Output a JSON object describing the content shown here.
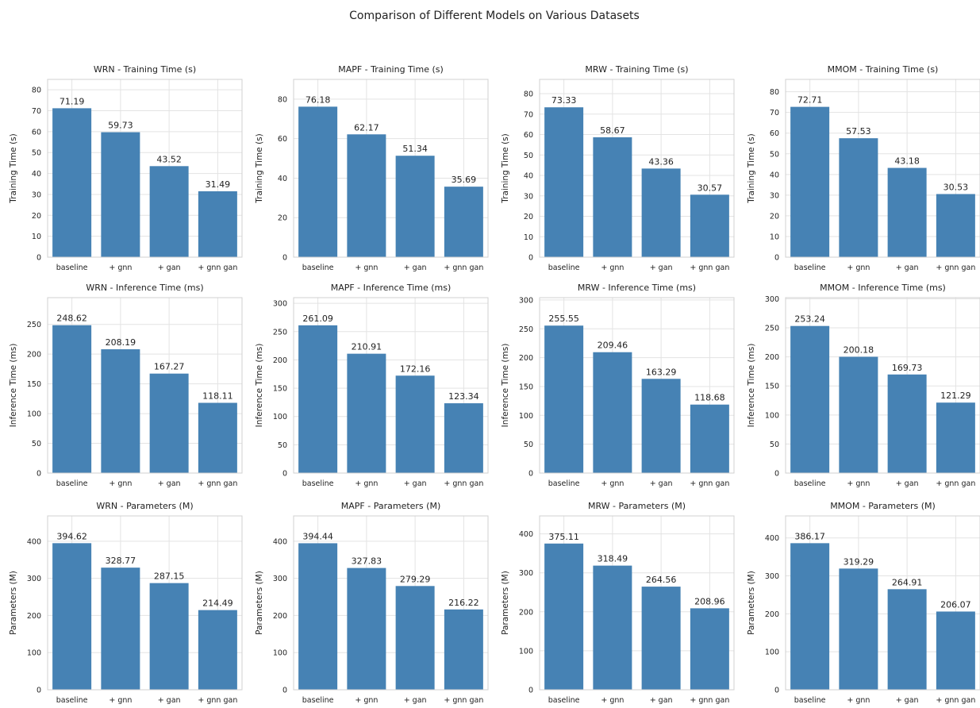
{
  "title": "Comparison of Different Models on Various Datasets",
  "colors": {
    "bar": "#4682b4",
    "grid": "#e3e3e3",
    "frame": "#d0d0d0"
  },
  "chart_data": [
    {
      "type": "bar",
      "title": "WRN - Training Time (s)",
      "ylabel": "Training Time (s)",
      "categories": [
        "baseline",
        "+ gnn",
        "+ gan",
        "+ gnn gan"
      ],
      "values": [
        71.19,
        59.73,
        43.52,
        31.49
      ],
      "value_labels": [
        "71.19",
        "59.73",
        "43.52",
        "31.49"
      ],
      "ylim": [
        0,
        85
      ],
      "yticks": [
        0,
        10,
        20,
        30,
        40,
        50,
        60,
        70,
        80
      ],
      "grid": true
    },
    {
      "type": "bar",
      "title": "MAPF - Training Time (s)",
      "ylabel": "Training Time (s)",
      "categories": [
        "baseline",
        "+ gnn",
        "+ gan",
        "+ gnn gan"
      ],
      "values": [
        76.18,
        62.17,
        51.34,
        35.69
      ],
      "value_labels": [
        "76.18",
        "62.17",
        "51.34",
        "35.69"
      ],
      "ylim": [
        0,
        90
      ],
      "yticks": [
        0,
        20,
        40,
        60,
        80
      ],
      "grid": true
    },
    {
      "type": "bar",
      "title": "MRW - Training Time (s)",
      "ylabel": "Training Time (s)",
      "categories": [
        "baseline",
        "+ gnn",
        "+ gan",
        "+ gnn gan"
      ],
      "values": [
        73.33,
        58.67,
        43.36,
        30.57
      ],
      "value_labels": [
        "73.33",
        "58.67",
        "43.36",
        "30.57"
      ],
      "ylim": [
        0,
        87
      ],
      "yticks": [
        0,
        10,
        20,
        30,
        40,
        50,
        60,
        70,
        80
      ],
      "grid": true
    },
    {
      "type": "bar",
      "title": "MMOM - Training Time (s)",
      "ylabel": "Training Time (s)",
      "categories": [
        "baseline",
        "+ gnn",
        "+ gan",
        "+ gnn gan"
      ],
      "values": [
        72.71,
        57.53,
        43.18,
        30.53
      ],
      "value_labels": [
        "72.71",
        "57.53",
        "43.18",
        "30.53"
      ],
      "ylim": [
        0,
        86
      ],
      "yticks": [
        0,
        10,
        20,
        30,
        40,
        50,
        60,
        70,
        80
      ],
      "grid": true
    },
    {
      "type": "bar",
      "title": "WRN - Inference Time (ms)",
      "ylabel": "Inference Time (ms)",
      "categories": [
        "baseline",
        "+ gnn",
        "+ gan",
        "+ gnn gan"
      ],
      "values": [
        248.62,
        208.19,
        167.27,
        118.11
      ],
      "value_labels": [
        "248.62",
        "208.19",
        "167.27",
        "118.11"
      ],
      "ylim": [
        0,
        295
      ],
      "yticks": [
        0,
        50,
        100,
        150,
        200,
        250
      ],
      "grid": true
    },
    {
      "type": "bar",
      "title": "MAPF - Inference Time (ms)",
      "ylabel": "Inference Time (ms)",
      "categories": [
        "baseline",
        "+ gnn",
        "+ gan",
        "+ gnn gan"
      ],
      "values": [
        261.09,
        210.91,
        172.16,
        123.34
      ],
      "value_labels": [
        "261.09",
        "210.91",
        "172.16",
        "123.34"
      ],
      "ylim": [
        0,
        310
      ],
      "yticks": [
        0,
        50,
        100,
        150,
        200,
        250,
        300
      ],
      "grid": true
    },
    {
      "type": "bar",
      "title": "MRW - Inference Time (ms)",
      "ylabel": "Inference Time (ms)",
      "categories": [
        "baseline",
        "+ gnn",
        "+ gan",
        "+ gnn gan"
      ],
      "values": [
        255.55,
        209.46,
        163.29,
        118.68
      ],
      "value_labels": [
        "255.55",
        "209.46",
        "163.29",
        "118.68"
      ],
      "ylim": [
        0,
        304
      ],
      "yticks": [
        0,
        50,
        100,
        150,
        200,
        250,
        300
      ],
      "grid": true
    },
    {
      "type": "bar",
      "title": "MMOM - Inference Time (ms)",
      "ylabel": "Inference Time (ms)",
      "categories": [
        "baseline",
        "+ gnn",
        "+ gan",
        "+ gnn gan"
      ],
      "values": [
        253.24,
        200.18,
        169.73,
        121.29
      ],
      "value_labels": [
        "253.24",
        "200.18",
        "169.73",
        "121.29"
      ],
      "ylim": [
        0,
        302
      ],
      "yticks": [
        0,
        50,
        100,
        150,
        200,
        250,
        300
      ],
      "grid": true
    },
    {
      "type": "bar",
      "title": "WRN - Parameters (M)",
      "ylabel": "Parameters (M)",
      "categories": [
        "baseline",
        "+ gnn",
        "+ gan",
        "+ gnn gan"
      ],
      "values": [
        394.62,
        328.77,
        287.15,
        214.49
      ],
      "value_labels": [
        "394.62",
        "328.77",
        "287.15",
        "214.49"
      ],
      "ylim": [
        0,
        468
      ],
      "yticks": [
        0,
        100,
        200,
        300,
        400
      ],
      "grid": true
    },
    {
      "type": "bar",
      "title": "MAPF - Parameters (M)",
      "ylabel": "Parameters (M)",
      "categories": [
        "baseline",
        "+ gnn",
        "+ gan",
        "+ gnn gan"
      ],
      "values": [
        394.44,
        327.83,
        279.29,
        216.22
      ],
      "value_labels": [
        "394.44",
        "327.83",
        "279.29",
        "216.22"
      ],
      "ylim": [
        0,
        468
      ],
      "yticks": [
        0,
        100,
        200,
        300,
        400
      ],
      "grid": true
    },
    {
      "type": "bar",
      "title": "MRW - Parameters (M)",
      "ylabel": "Parameters (M)",
      "categories": [
        "baseline",
        "+ gnn",
        "+ gan",
        "+ gnn gan"
      ],
      "values": [
        375.11,
        318.49,
        264.56,
        208.96
      ],
      "value_labels": [
        "375.11",
        "318.49",
        "264.56",
        "208.96"
      ],
      "ylim": [
        0,
        446
      ],
      "yticks": [
        0,
        100,
        200,
        300,
        400
      ],
      "grid": true
    },
    {
      "type": "bar",
      "title": "MMOM - Parameters (M)",
      "ylabel": "Parameters (M)",
      "categories": [
        "baseline",
        "+ gnn",
        "+ gan",
        "+ gnn gan"
      ],
      "values": [
        386.17,
        319.29,
        264.91,
        206.07
      ],
      "value_labels": [
        "386.17",
        "319.29",
        "264.91",
        "206.07"
      ],
      "ylim": [
        0,
        458
      ],
      "yticks": [
        0,
        100,
        200,
        300,
        400
      ],
      "grid": true
    }
  ]
}
